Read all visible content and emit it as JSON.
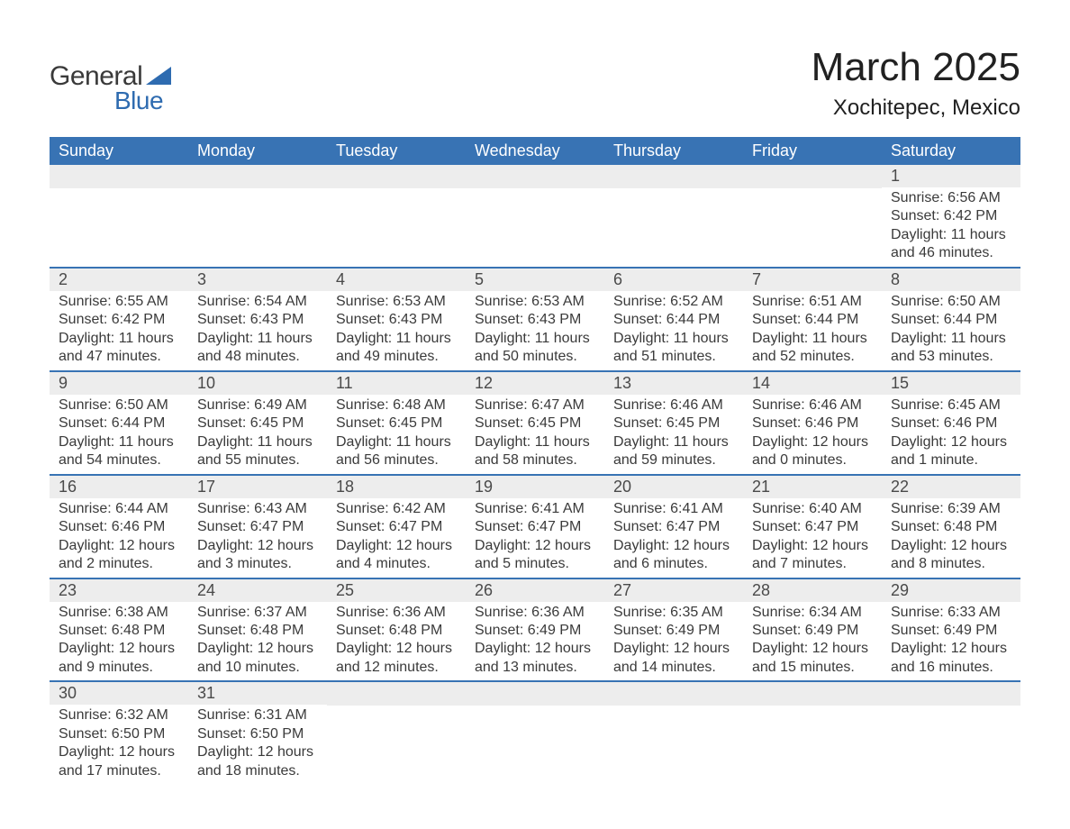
{
  "logo": {
    "text1": "General",
    "text2": "Blue",
    "text_color": "#3a3a3a",
    "accent_color": "#2e6bb0"
  },
  "title": "March 2025",
  "location": "Xochitepec, Mexico",
  "colors": {
    "header_bg": "#3873b4",
    "header_text": "#ffffff",
    "daynum_bg": "#ededed",
    "row_divider": "#3873b4",
    "body_text": "#3a3a3a"
  },
  "fonts": {
    "title_size": 44,
    "location_size": 24,
    "header_size": 18,
    "daynum_size": 18,
    "body_size": 16
  },
  "day_headers": [
    "Sunday",
    "Monday",
    "Tuesday",
    "Wednesday",
    "Thursday",
    "Friday",
    "Saturday"
  ],
  "weeks": [
    [
      null,
      null,
      null,
      null,
      null,
      null,
      {
        "n": "1",
        "sunrise": "Sunrise: 6:56 AM",
        "sunset": "Sunset: 6:42 PM",
        "daylight": "Daylight: 11 hours and 46 minutes."
      }
    ],
    [
      {
        "n": "2",
        "sunrise": "Sunrise: 6:55 AM",
        "sunset": "Sunset: 6:42 PM",
        "daylight": "Daylight: 11 hours and 47 minutes."
      },
      {
        "n": "3",
        "sunrise": "Sunrise: 6:54 AM",
        "sunset": "Sunset: 6:43 PM",
        "daylight": "Daylight: 11 hours and 48 minutes."
      },
      {
        "n": "4",
        "sunrise": "Sunrise: 6:53 AM",
        "sunset": "Sunset: 6:43 PM",
        "daylight": "Daylight: 11 hours and 49 minutes."
      },
      {
        "n": "5",
        "sunrise": "Sunrise: 6:53 AM",
        "sunset": "Sunset: 6:43 PM",
        "daylight": "Daylight: 11 hours and 50 minutes."
      },
      {
        "n": "6",
        "sunrise": "Sunrise: 6:52 AM",
        "sunset": "Sunset: 6:44 PM",
        "daylight": "Daylight: 11 hours and 51 minutes."
      },
      {
        "n": "7",
        "sunrise": "Sunrise: 6:51 AM",
        "sunset": "Sunset: 6:44 PM",
        "daylight": "Daylight: 11 hours and 52 minutes."
      },
      {
        "n": "8",
        "sunrise": "Sunrise: 6:50 AM",
        "sunset": "Sunset: 6:44 PM",
        "daylight": "Daylight: 11 hours and 53 minutes."
      }
    ],
    [
      {
        "n": "9",
        "sunrise": "Sunrise: 6:50 AM",
        "sunset": "Sunset: 6:44 PM",
        "daylight": "Daylight: 11 hours and 54 minutes."
      },
      {
        "n": "10",
        "sunrise": "Sunrise: 6:49 AM",
        "sunset": "Sunset: 6:45 PM",
        "daylight": "Daylight: 11 hours and 55 minutes."
      },
      {
        "n": "11",
        "sunrise": "Sunrise: 6:48 AM",
        "sunset": "Sunset: 6:45 PM",
        "daylight": "Daylight: 11 hours and 56 minutes."
      },
      {
        "n": "12",
        "sunrise": "Sunrise: 6:47 AM",
        "sunset": "Sunset: 6:45 PM",
        "daylight": "Daylight: 11 hours and 58 minutes."
      },
      {
        "n": "13",
        "sunrise": "Sunrise: 6:46 AM",
        "sunset": "Sunset: 6:45 PM",
        "daylight": "Daylight: 11 hours and 59 minutes."
      },
      {
        "n": "14",
        "sunrise": "Sunrise: 6:46 AM",
        "sunset": "Sunset: 6:46 PM",
        "daylight": "Daylight: 12 hours and 0 minutes."
      },
      {
        "n": "15",
        "sunrise": "Sunrise: 6:45 AM",
        "sunset": "Sunset: 6:46 PM",
        "daylight": "Daylight: 12 hours and 1 minute."
      }
    ],
    [
      {
        "n": "16",
        "sunrise": "Sunrise: 6:44 AM",
        "sunset": "Sunset: 6:46 PM",
        "daylight": "Daylight: 12 hours and 2 minutes."
      },
      {
        "n": "17",
        "sunrise": "Sunrise: 6:43 AM",
        "sunset": "Sunset: 6:47 PM",
        "daylight": "Daylight: 12 hours and 3 minutes."
      },
      {
        "n": "18",
        "sunrise": "Sunrise: 6:42 AM",
        "sunset": "Sunset: 6:47 PM",
        "daylight": "Daylight: 12 hours and 4 minutes."
      },
      {
        "n": "19",
        "sunrise": "Sunrise: 6:41 AM",
        "sunset": "Sunset: 6:47 PM",
        "daylight": "Daylight: 12 hours and 5 minutes."
      },
      {
        "n": "20",
        "sunrise": "Sunrise: 6:41 AM",
        "sunset": "Sunset: 6:47 PM",
        "daylight": "Daylight: 12 hours and 6 minutes."
      },
      {
        "n": "21",
        "sunrise": "Sunrise: 6:40 AM",
        "sunset": "Sunset: 6:47 PM",
        "daylight": "Daylight: 12 hours and 7 minutes."
      },
      {
        "n": "22",
        "sunrise": "Sunrise: 6:39 AM",
        "sunset": "Sunset: 6:48 PM",
        "daylight": "Daylight: 12 hours and 8 minutes."
      }
    ],
    [
      {
        "n": "23",
        "sunrise": "Sunrise: 6:38 AM",
        "sunset": "Sunset: 6:48 PM",
        "daylight": "Daylight: 12 hours and 9 minutes."
      },
      {
        "n": "24",
        "sunrise": "Sunrise: 6:37 AM",
        "sunset": "Sunset: 6:48 PM",
        "daylight": "Daylight: 12 hours and 10 minutes."
      },
      {
        "n": "25",
        "sunrise": "Sunrise: 6:36 AM",
        "sunset": "Sunset: 6:48 PM",
        "daylight": "Daylight: 12 hours and 12 minutes."
      },
      {
        "n": "26",
        "sunrise": "Sunrise: 6:36 AM",
        "sunset": "Sunset: 6:49 PM",
        "daylight": "Daylight: 12 hours and 13 minutes."
      },
      {
        "n": "27",
        "sunrise": "Sunrise: 6:35 AM",
        "sunset": "Sunset: 6:49 PM",
        "daylight": "Daylight: 12 hours and 14 minutes."
      },
      {
        "n": "28",
        "sunrise": "Sunrise: 6:34 AM",
        "sunset": "Sunset: 6:49 PM",
        "daylight": "Daylight: 12 hours and 15 minutes."
      },
      {
        "n": "29",
        "sunrise": "Sunrise: 6:33 AM",
        "sunset": "Sunset: 6:49 PM",
        "daylight": "Daylight: 12 hours and 16 minutes."
      }
    ],
    [
      {
        "n": "30",
        "sunrise": "Sunrise: 6:32 AM",
        "sunset": "Sunset: 6:50 PM",
        "daylight": "Daylight: 12 hours and 17 minutes."
      },
      {
        "n": "31",
        "sunrise": "Sunrise: 6:31 AM",
        "sunset": "Sunset: 6:50 PM",
        "daylight": "Daylight: 12 hours and 18 minutes."
      },
      null,
      null,
      null,
      null,
      null
    ]
  ]
}
